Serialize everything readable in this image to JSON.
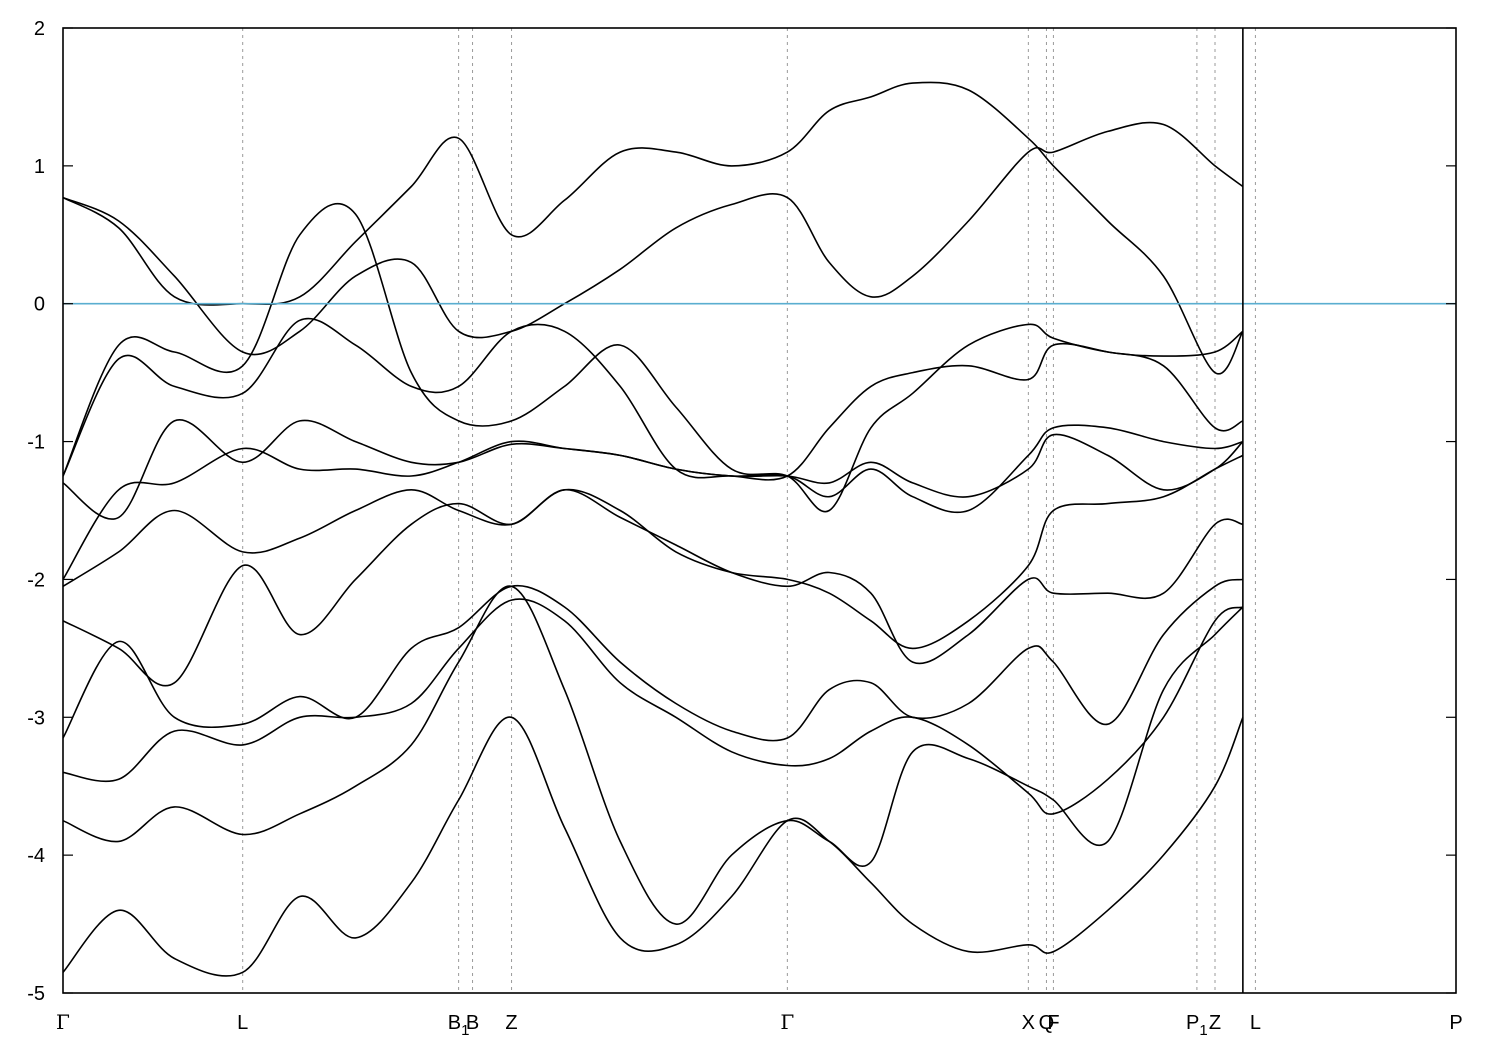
{
  "chart_data": {
    "type": "line",
    "title": "",
    "xlabel": "",
    "ylabel": "",
    "ylim": [
      -5,
      2
    ],
    "yticks": [
      "2",
      "1",
      "0",
      "-1",
      "-2",
      "-3",
      "-4",
      "-5"
    ],
    "ytick_values": [
      2,
      1,
      0,
      -1,
      -2,
      -3,
      -4,
      -5
    ],
    "xlim": [
      0,
      1.0
    ],
    "high_symmetry_points": [
      {
        "label": "Γ",
        "sub": "",
        "x": 0.0
      },
      {
        "label": "L",
        "sub": "",
        "x": 0.129
      },
      {
        "label": "B",
        "sub": "1",
        "x": 0.284
      },
      {
        "label": "B",
        "sub": "",
        "x": 0.294
      },
      {
        "label": "Z",
        "sub": "",
        "x": 0.322
      },
      {
        "label": "Γ",
        "sub": "",
        "x": 0.52
      },
      {
        "label": "X",
        "sub": "",
        "x": 0.693
      },
      {
        "label": "Q",
        "sub": "",
        "x": 0.706
      },
      {
        "label": "F",
        "sub": "",
        "x": 0.711
      },
      {
        "label": "P",
        "sub": "1",
        "x": 0.814
      },
      {
        "label": "Z",
        "sub": "",
        "x": 0.827
      },
      {
        "label": "L",
        "sub": "",
        "x": 0.856
      },
      {
        "label": "P",
        "sub": "",
        "x": 1.0
      }
    ],
    "path_break_x": 0.847,
    "fermi_level": 0,
    "fermi_color": "#5aaed0",
    "band_color": "#000000",
    "series": [
      {
        "x": [
          0,
          0.04,
          0.08,
          0.129,
          0.17,
          0.21,
          0.25,
          0.284,
          0.322,
          0.36,
          0.4,
          0.44,
          0.48,
          0.52,
          0.55,
          0.58,
          0.61,
          0.65,
          0.693,
          0.711,
          0.75,
          0.79,
          0.827,
          0.847
        ],
        "y": [
          0.77,
          0.55,
          0.05,
          0.0,
          0.05,
          0.45,
          0.85,
          1.2,
          0.5,
          0.75,
          1.1,
          1.1,
          1.0,
          1.1,
          1.4,
          1.5,
          1.6,
          1.55,
          1.2,
          1.0,
          0.6,
          0.2,
          -0.5,
          -0.2
        ]
      },
      {
        "x": [
          0,
          0.04,
          0.08,
          0.129,
          0.17,
          0.21,
          0.25,
          0.284,
          0.322,
          0.36,
          0.4,
          0.44,
          0.48,
          0.52,
          0.55,
          0.58,
          0.61,
          0.65,
          0.693,
          0.711,
          0.75,
          0.79,
          0.827,
          0.847
        ],
        "y": [
          0.77,
          0.6,
          0.2,
          -0.35,
          -0.2,
          0.2,
          0.3,
          -0.2,
          -0.2,
          0.0,
          0.25,
          0.55,
          0.72,
          0.77,
          0.3,
          0.05,
          0.2,
          0.6,
          1.1,
          1.1,
          1.25,
          1.3,
          1.0,
          0.85
        ]
      },
      {
        "x": [
          0,
          0.04,
          0.08,
          0.129,
          0.17,
          0.21,
          0.25,
          0.284,
          0.322,
          0.36,
          0.4,
          0.44,
          0.48,
          0.52,
          0.55,
          0.58,
          0.61,
          0.65,
          0.693,
          0.711,
          0.75,
          0.79,
          0.827,
          0.847
        ],
        "y": [
          -1.25,
          -0.3,
          -0.35,
          -0.45,
          0.5,
          0.65,
          -0.5,
          -0.85,
          -0.85,
          -0.6,
          -0.3,
          -0.75,
          -1.2,
          -1.25,
          -1.5,
          -0.9,
          -0.65,
          -0.3,
          -0.15,
          -0.25,
          -0.35,
          -0.38,
          -0.35,
          -0.2
        ]
      },
      {
        "x": [
          0,
          0.04,
          0.08,
          0.129,
          0.17,
          0.21,
          0.25,
          0.284,
          0.322,
          0.36,
          0.4,
          0.44,
          0.48,
          0.52,
          0.55,
          0.58,
          0.61,
          0.65,
          0.693,
          0.711,
          0.75,
          0.79,
          0.827,
          0.847
        ],
        "y": [
          -1.25,
          -0.4,
          -0.6,
          -0.65,
          -0.12,
          -0.3,
          -0.6,
          -0.6,
          -0.2,
          -0.2,
          -0.6,
          -1.2,
          -1.25,
          -1.25,
          -0.9,
          -0.6,
          -0.5,
          -0.45,
          -0.55,
          -0.3,
          -0.35,
          -0.45,
          -0.9,
          -0.85
        ]
      },
      {
        "x": [
          0,
          0.04,
          0.08,
          0.129,
          0.17,
          0.21,
          0.25,
          0.284,
          0.322,
          0.36,
          0.4,
          0.44,
          0.48,
          0.52,
          0.55,
          0.58,
          0.61,
          0.65,
          0.693,
          0.711,
          0.75,
          0.79,
          0.827,
          0.847
        ],
        "y": [
          -1.3,
          -1.55,
          -0.85,
          -1.15,
          -0.85,
          -1.0,
          -1.15,
          -1.15,
          -1.02,
          -1.05,
          -1.1,
          -1.2,
          -1.25,
          -1.25,
          -1.4,
          -1.2,
          -1.4,
          -1.5,
          -1.1,
          -0.9,
          -0.9,
          -1.0,
          -1.05,
          -1.0
        ]
      },
      {
        "x": [
          0,
          0.04,
          0.08,
          0.129,
          0.17,
          0.21,
          0.25,
          0.284,
          0.322,
          0.36,
          0.4,
          0.44,
          0.48,
          0.52,
          0.55,
          0.58,
          0.61,
          0.65,
          0.693,
          0.711,
          0.75,
          0.79,
          0.827,
          0.847
        ],
        "y": [
          -2.0,
          -1.35,
          -1.3,
          -1.05,
          -1.2,
          -1.2,
          -1.25,
          -1.15,
          -1.0,
          -1.05,
          -1.1,
          -1.2,
          -1.25,
          -1.25,
          -1.3,
          -1.15,
          -1.3,
          -1.4,
          -1.2,
          -0.95,
          -1.1,
          -1.35,
          -1.2,
          -1.0
        ]
      },
      {
        "x": [
          0,
          0.04,
          0.08,
          0.129,
          0.17,
          0.21,
          0.25,
          0.284,
          0.322,
          0.36,
          0.4,
          0.44,
          0.48,
          0.52,
          0.55,
          0.58,
          0.61,
          0.65,
          0.693,
          0.711,
          0.75,
          0.79,
          0.827,
          0.847
        ],
        "y": [
          -2.05,
          -1.8,
          -1.5,
          -1.8,
          -1.7,
          -1.5,
          -1.35,
          -1.5,
          -1.6,
          -1.35,
          -1.5,
          -1.8,
          -1.95,
          -2.0,
          -2.1,
          -2.3,
          -2.5,
          -2.3,
          -1.9,
          -1.5,
          -1.45,
          -1.4,
          -1.2,
          -1.1
        ]
      },
      {
        "x": [
          0,
          0.04,
          0.08,
          0.129,
          0.17,
          0.21,
          0.25,
          0.284,
          0.322,
          0.36,
          0.4,
          0.44,
          0.48,
          0.52,
          0.55,
          0.58,
          0.61,
          0.65,
          0.693,
          0.711,
          0.75,
          0.79,
          0.827,
          0.847
        ],
        "y": [
          -2.3,
          -2.5,
          -2.75,
          -1.9,
          -2.4,
          -2.0,
          -1.6,
          -1.45,
          -1.6,
          -1.35,
          -1.55,
          -1.75,
          -1.95,
          -2.05,
          -1.95,
          -2.1,
          -2.6,
          -2.4,
          -2.0,
          -2.1,
          -2.1,
          -2.1,
          -1.6,
          -1.6
        ]
      },
      {
        "x": [
          0,
          0.04,
          0.08,
          0.129,
          0.17,
          0.21,
          0.25,
          0.284,
          0.322,
          0.36,
          0.4,
          0.44,
          0.48,
          0.52,
          0.55,
          0.58,
          0.61,
          0.65,
          0.693,
          0.711,
          0.75,
          0.79,
          0.827,
          0.847
        ],
        "y": [
          -3.15,
          -2.45,
          -3.0,
          -3.05,
          -2.85,
          -3.0,
          -2.5,
          -2.35,
          -2.05,
          -2.2,
          -2.6,
          -2.9,
          -3.1,
          -3.15,
          -2.8,
          -2.75,
          -3.0,
          -2.9,
          -2.5,
          -2.6,
          -3.05,
          -2.4,
          -2.05,
          -2.0
        ]
      },
      {
        "x": [
          0,
          0.04,
          0.08,
          0.129,
          0.17,
          0.21,
          0.25,
          0.284,
          0.322,
          0.36,
          0.4,
          0.44,
          0.48,
          0.52,
          0.55,
          0.58,
          0.61,
          0.65,
          0.693,
          0.711,
          0.75,
          0.79,
          0.827,
          0.847
        ],
        "y": [
          -3.4,
          -3.45,
          -3.1,
          -3.2,
          -3.0,
          -3.0,
          -2.9,
          -2.5,
          -2.15,
          -2.3,
          -2.75,
          -3.0,
          -3.25,
          -3.35,
          -3.3,
          -3.1,
          -3.0,
          -3.2,
          -3.55,
          -3.7,
          -3.45,
          -3.0,
          -2.3,
          -2.2
        ]
      },
      {
        "x": [
          0,
          0.04,
          0.08,
          0.129,
          0.17,
          0.21,
          0.25,
          0.284,
          0.322,
          0.36,
          0.4,
          0.44,
          0.48,
          0.52,
          0.55,
          0.58,
          0.61,
          0.65,
          0.693,
          0.711,
          0.75,
          0.79,
          0.827,
          0.847
        ],
        "y": [
          -3.75,
          -3.9,
          -3.65,
          -3.85,
          -3.7,
          -3.5,
          -3.2,
          -2.6,
          -2.05,
          -2.8,
          -3.9,
          -4.5,
          -4.0,
          -3.75,
          -3.9,
          -4.05,
          -3.25,
          -3.3,
          -3.5,
          -3.6,
          -3.9,
          -2.8,
          -2.4,
          -2.2
        ]
      },
      {
        "x": [
          0,
          0.04,
          0.08,
          0.129,
          0.17,
          0.21,
          0.25,
          0.284,
          0.322,
          0.36,
          0.4,
          0.44,
          0.48,
          0.52,
          0.55,
          0.58,
          0.61,
          0.65,
          0.693,
          0.711,
          0.75,
          0.79,
          0.827,
          0.847
        ],
        "y": [
          -4.85,
          -4.4,
          -4.75,
          -4.85,
          -4.3,
          -4.6,
          -4.2,
          -3.6,
          -3.0,
          -3.8,
          -4.6,
          -4.65,
          -4.3,
          -3.75,
          -3.9,
          -4.2,
          -4.5,
          -4.7,
          -4.65,
          -4.7,
          -4.4,
          -4.0,
          -3.5,
          -3.0
        ]
      }
    ]
  }
}
